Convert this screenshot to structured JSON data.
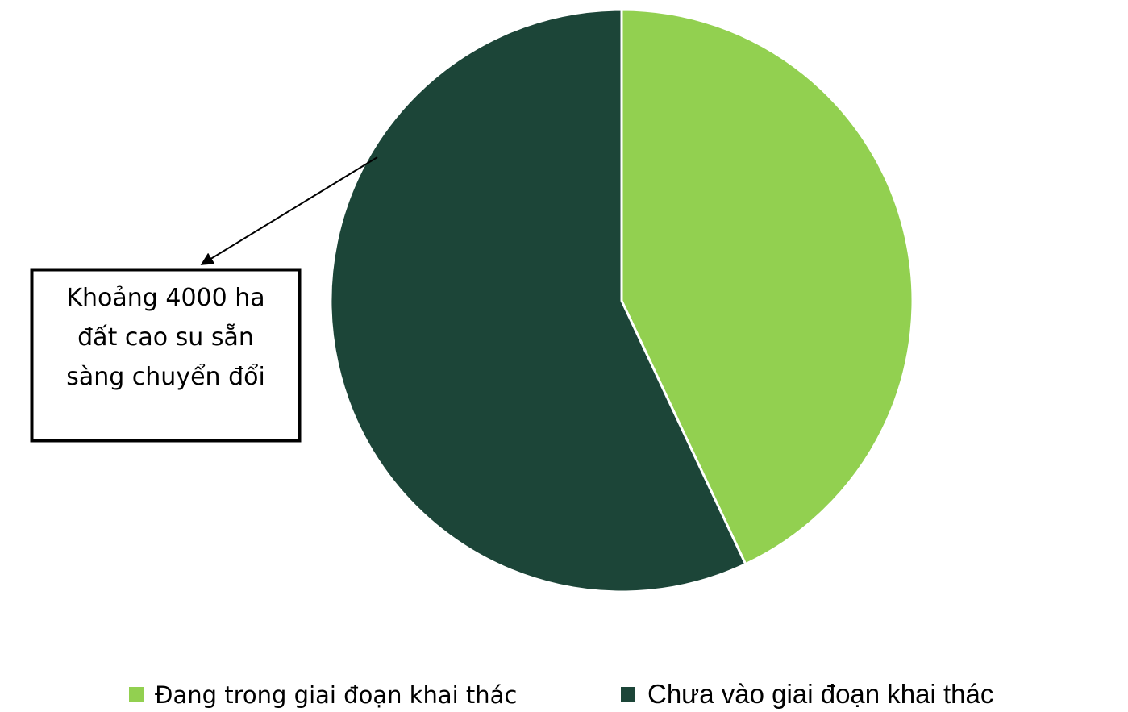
{
  "chart_data": {
    "type": "pie",
    "categories": [
      "Đang trong giai đoạn khai thác",
      "Chưa vào giai đoạn khai thác"
    ],
    "values": [
      43,
      57
    ],
    "colors": [
      "#92d050",
      "#1c4538"
    ],
    "annotation": "Khoảng 4000 ha đất cao su sẵn sàng chuyển đổi"
  }
}
